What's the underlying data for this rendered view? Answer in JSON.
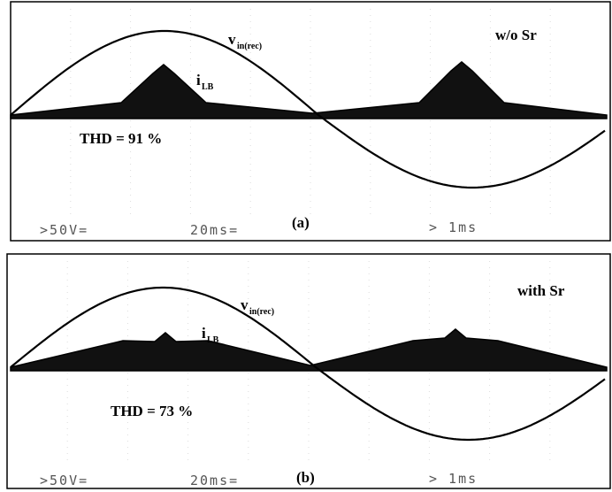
{
  "panels": [
    {
      "label": "(a)",
      "v": "v",
      "v_sub": "in(rec)",
      "i": "i",
      "i_sub": "LB",
      "condition": "w/o Sr",
      "thd": "THD = 91 %",
      "scope": [
        ">50V=",
        "20ms=",
        "> 1ms"
      ]
    },
    {
      "label": "(b)",
      "v": "v",
      "v_sub": "in(rec)",
      "i": "i",
      "i_sub": "LB",
      "condition": "with Sr",
      "thd": "THD = 73 %",
      "scope": [
        ">50V=",
        "20ms=",
        "> 1ms"
      ]
    }
  ]
}
